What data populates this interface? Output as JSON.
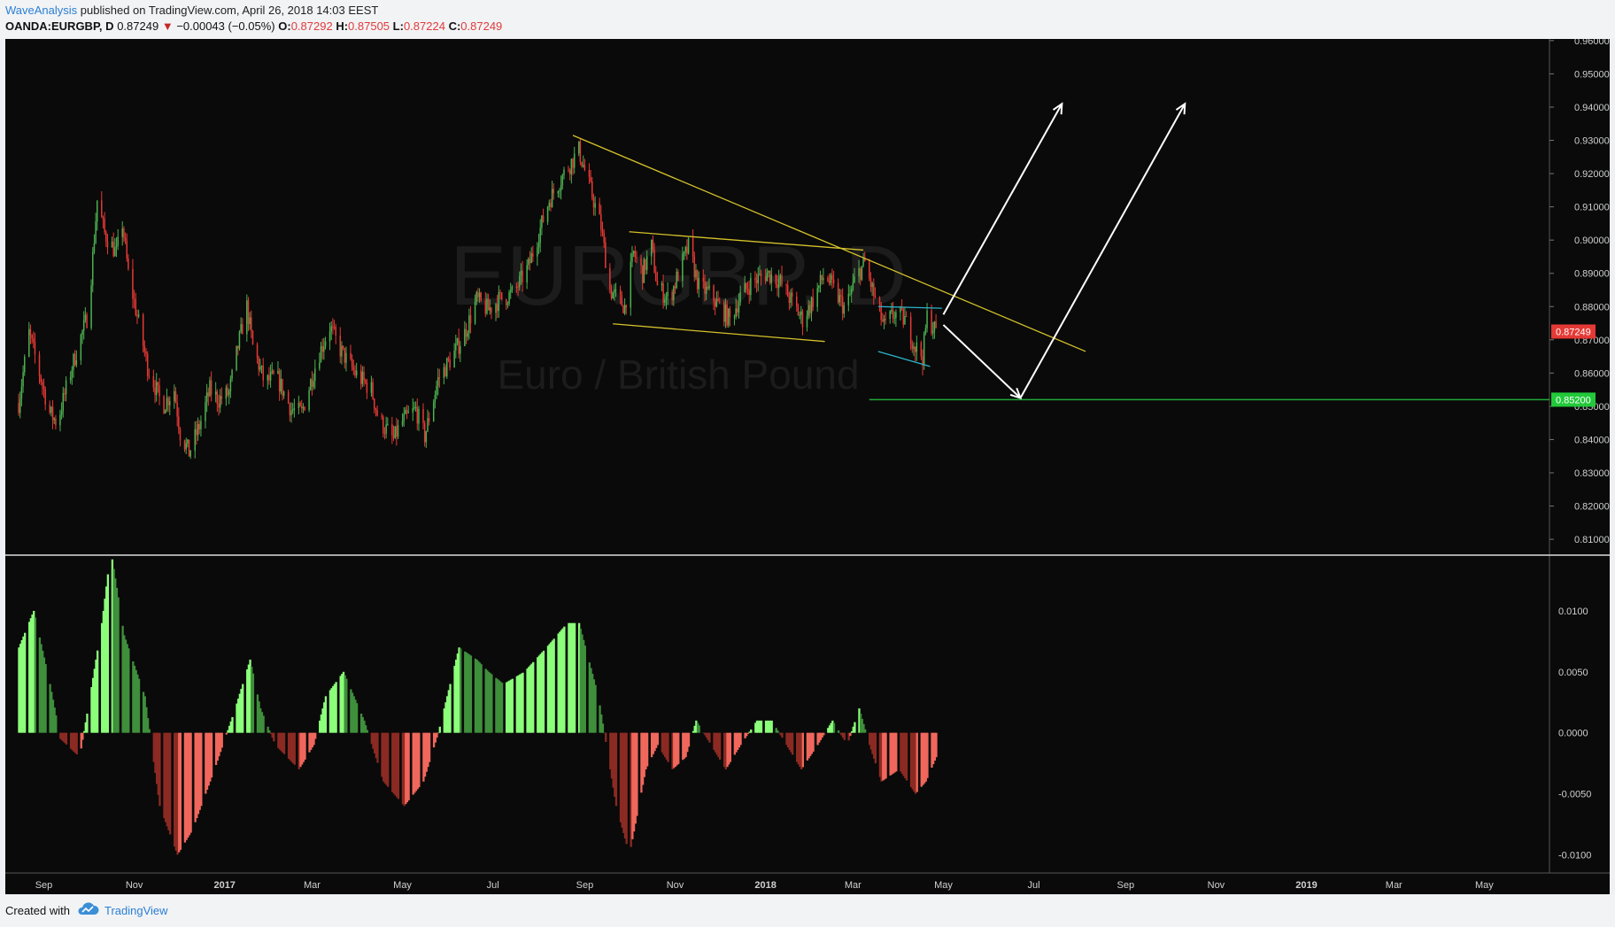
{
  "header": {
    "author": "WaveAnalysis",
    "published_text": "published on TradingView.com, April 26, 2018 14:03 EEST",
    "symbol": "OANDA:EURGBP, D",
    "last": "0.87249",
    "change_arrow": "▼",
    "change": "−0.00043 (−0.05%)",
    "open_label": "O:",
    "open": "0.87292",
    "high_label": "H:",
    "high": "0.87505",
    "low_label": "L:",
    "low": "0.87224",
    "close_label": "C:",
    "close": "0.87249"
  },
  "watermark": {
    "symbol": "EURGBP, D",
    "name": "Euro / British Pound"
  },
  "footer": {
    "created_with": "Created with",
    "brand": "TradingView",
    "logo_icon": "tradingview-cloud-icon"
  },
  "colors": {
    "background": "#0a0a0a",
    "bull": "#4caf50",
    "bear": "#e53935",
    "trendline": "#d4c12b",
    "channel": "#2bb3c9",
    "support": "#22a83a",
    "hist_pos_light": "#8cff7a",
    "hist_pos_dark": "#3f8f3c",
    "hist_neg_light": "#f0675c",
    "hist_neg_dark": "#8b2a22",
    "price_tag": "#e53935",
    "support_tag": "#22c93a"
  },
  "chart_data": {
    "type": "candlestick",
    "price_axis": {
      "ticks": [
        "0.96000",
        "0.95000",
        "0.94000",
        "0.93000",
        "0.92000",
        "0.91000",
        "0.90000",
        "0.89000",
        "0.88000",
        "0.87000",
        "0.86000",
        "0.85000",
        "0.84000",
        "0.83000",
        "0.82000",
        "0.81000"
      ],
      "ylim": [
        0.8055,
        0.9605
      ],
      "current_price_label": "0.87249",
      "support_label": "0.85200"
    },
    "time_axis": {
      "labels": [
        "Sep",
        "Nov",
        "2017",
        "Mar",
        "May",
        "Jul",
        "Sep",
        "Nov",
        "2018",
        "Mar",
        "May",
        "Jul",
        "Sep",
        "Nov",
        "2019",
        "Mar",
        "May"
      ],
      "bold": [
        "2017",
        "2018",
        "2019"
      ]
    },
    "price_path": [
      [
        "2016-08-15",
        0.851
      ],
      [
        "2016-08-22",
        0.872
      ],
      [
        "2016-09-05",
        0.848
      ],
      [
        "2016-09-10",
        0.845
      ],
      [
        "2016-09-20",
        0.862
      ],
      [
        "2016-10-01",
        0.878
      ],
      [
        "2016-10-07",
        0.912
      ],
      [
        "2016-10-12",
        0.902
      ],
      [
        "2016-10-20",
        0.896
      ],
      [
        "2016-10-24",
        0.905
      ],
      [
        "2016-10-28",
        0.89
      ],
      [
        "2016-11-10",
        0.862
      ],
      [
        "2016-11-20",
        0.85
      ],
      [
        "2016-11-28",
        0.855
      ],
      [
        "2016-12-02",
        0.842
      ],
      [
        "2016-12-08",
        0.836
      ],
      [
        "2016-12-15",
        0.844
      ],
      [
        "2016-12-22",
        0.855
      ],
      [
        "2016-12-28",
        0.852
      ],
      [
        "2017-01-04",
        0.854
      ],
      [
        "2017-01-10",
        0.868
      ],
      [
        "2017-01-16",
        0.88
      ],
      [
        "2017-01-20",
        0.868
      ],
      [
        "2017-01-28",
        0.857
      ],
      [
        "2017-02-05",
        0.859
      ],
      [
        "2017-02-15",
        0.849
      ],
      [
        "2017-02-22",
        0.848
      ],
      [
        "2017-03-05",
        0.865
      ],
      [
        "2017-03-13",
        0.874
      ],
      [
        "2017-03-20",
        0.867
      ],
      [
        "2017-03-30",
        0.86
      ],
      [
        "2017-04-10",
        0.855
      ],
      [
        "2017-04-15",
        0.846
      ],
      [
        "2017-04-25",
        0.84
      ],
      [
        "2017-04-30",
        0.845
      ],
      [
        "2017-05-10",
        0.849
      ],
      [
        "2017-05-16",
        0.841
      ],
      [
        "2017-05-25",
        0.858
      ],
      [
        "2017-06-05",
        0.866
      ],
      [
        "2017-06-12",
        0.872
      ],
      [
        "2017-06-20",
        0.882
      ],
      [
        "2017-06-28",
        0.879
      ],
      [
        "2017-07-05",
        0.882
      ],
      [
        "2017-07-15",
        0.884
      ],
      [
        "2017-07-25",
        0.892
      ],
      [
        "2017-08-01",
        0.902
      ],
      [
        "2017-08-08",
        0.912
      ],
      [
        "2017-08-18",
        0.92
      ],
      [
        "2017-08-28",
        0.927
      ],
      [
        "2017-09-05",
        0.915
      ],
      [
        "2017-09-12",
        0.904
      ],
      [
        "2017-09-18",
        0.885
      ],
      [
        "2017-09-28",
        0.88
      ],
      [
        "2017-10-04",
        0.896
      ],
      [
        "2017-10-10",
        0.89
      ],
      [
        "2017-10-16",
        0.898
      ],
      [
        "2017-10-20",
        0.886
      ],
      [
        "2017-10-28",
        0.882
      ],
      [
        "2017-11-04",
        0.891
      ],
      [
        "2017-11-10",
        0.898
      ],
      [
        "2017-11-17",
        0.886
      ],
      [
        "2017-11-24",
        0.884
      ],
      [
        "2017-12-01",
        0.88
      ],
      [
        "2017-12-08",
        0.876
      ],
      [
        "2017-12-15",
        0.883
      ],
      [
        "2017-12-22",
        0.887
      ],
      [
        "2018-01-02",
        0.89
      ],
      [
        "2018-01-10",
        0.888
      ],
      [
        "2018-01-18",
        0.882
      ],
      [
        "2018-01-26",
        0.876
      ],
      [
        "2018-02-02",
        0.882
      ],
      [
        "2018-02-10",
        0.89
      ],
      [
        "2018-02-16",
        0.885
      ],
      [
        "2018-02-24",
        0.879
      ],
      [
        "2018-03-03",
        0.889
      ],
      [
        "2018-03-09",
        0.893
      ],
      [
        "2018-03-16",
        0.882
      ],
      [
        "2018-03-22",
        0.874
      ],
      [
        "2018-03-29",
        0.878
      ],
      [
        "2018-04-05",
        0.876
      ],
      [
        "2018-04-12",
        0.868
      ],
      [
        "2018-04-17",
        0.865
      ],
      [
        "2018-04-20",
        0.877
      ],
      [
        "2018-04-26",
        0.8725
      ]
    ],
    "histogram": {
      "axis_ticks": [
        "0.0100",
        "0.0050",
        "0.0000",
        "-0.0050",
        "-0.0100"
      ],
      "ylim": [
        -0.0115,
        0.0145
      ],
      "profile": [
        [
          "2016-08-15",
          0.007
        ],
        [
          "2016-08-25",
          0.01
        ],
        [
          "2016-09-05",
          0.004
        ],
        [
          "2016-09-12",
          -0.0005
        ],
        [
          "2016-09-25",
          -0.002
        ],
        [
          "2016-10-02",
          0.003
        ],
        [
          "2016-10-10",
          0.009
        ],
        [
          "2016-10-16",
          0.015
        ],
        [
          "2016-10-25",
          0.008
        ],
        [
          "2016-11-08",
          0.003
        ],
        [
          "2016-11-18",
          -0.006
        ],
        [
          "2016-11-30",
          -0.01
        ],
        [
          "2016-12-10",
          -0.008
        ],
        [
          "2016-12-25",
          -0.003
        ],
        [
          "2017-01-08",
          0.002
        ],
        [
          "2017-01-18",
          0.006
        ],
        [
          "2017-01-25",
          0.002
        ],
        [
          "2017-02-04",
          -0.001
        ],
        [
          "2017-02-20",
          -0.003
        ],
        [
          "2017-03-02",
          -0.001
        ],
        [
          "2017-03-10",
          0.003
        ],
        [
          "2017-03-22",
          0.005
        ],
        [
          "2017-04-05",
          0.001
        ],
        [
          "2017-04-18",
          -0.004
        ],
        [
          "2017-05-02",
          -0.006
        ],
        [
          "2017-05-15",
          -0.004
        ],
        [
          "2017-05-25",
          0.0
        ],
        [
          "2017-06-08",
          0.007
        ],
        [
          "2017-06-20",
          0.006
        ],
        [
          "2017-06-28",
          0.005
        ],
        [
          "2017-07-08",
          0.004
        ],
        [
          "2017-07-22",
          0.005
        ],
        [
          "2017-08-06",
          0.007
        ],
        [
          "2017-08-20",
          0.009
        ],
        [
          "2017-08-28",
          0.009
        ],
        [
          "2017-09-10",
          0.003
        ],
        [
          "2017-09-22",
          -0.006
        ],
        [
          "2017-10-01",
          -0.01
        ],
        [
          "2017-10-12",
          -0.003
        ],
        [
          "2017-10-20",
          -0.001
        ],
        [
          "2017-10-30",
          -0.003
        ],
        [
          "2017-11-08",
          -0.002
        ],
        [
          "2017-11-15",
          0.001
        ],
        [
          "2017-11-25",
          -0.001
        ],
        [
          "2017-12-05",
          -0.003
        ],
        [
          "2017-12-15",
          -0.001
        ],
        [
          "2017-12-26",
          0.001
        ],
        [
          "2018-01-05",
          0.001
        ],
        [
          "2018-01-15",
          -0.001
        ],
        [
          "2018-01-25",
          -0.003
        ],
        [
          "2018-02-05",
          -0.001
        ],
        [
          "2018-02-15",
          0.001
        ],
        [
          "2018-02-25",
          -0.001
        ],
        [
          "2018-03-05",
          0.002
        ],
        [
          "2018-03-12",
          -0.001
        ],
        [
          "2018-03-20",
          -0.004
        ],
        [
          "2018-04-01",
          -0.003
        ],
        [
          "2018-04-12",
          -0.005
        ],
        [
          "2018-04-19",
          -0.004
        ],
        [
          "2018-04-26",
          -0.002
        ]
      ]
    },
    "annotations": {
      "main_trendline": [
        [
          "2017-08-24",
          0.9315
        ],
        [
          "2018-08-05",
          0.8665
        ]
      ],
      "channel_upper": [
        [
          "2017-10-01",
          0.9025
        ],
        [
          "2018-03-08",
          0.897
        ]
      ],
      "channel_lower": [
        [
          "2017-09-20",
          0.8748
        ],
        [
          "2018-02-10",
          0.8695
        ]
      ],
      "wedge_upper": [
        [
          "2018-03-18",
          0.88
        ],
        [
          "2018-04-30",
          0.8795
        ]
      ],
      "wedge_lower": [
        [
          "2018-03-18",
          0.8665
        ],
        [
          "2018-04-22",
          0.862
        ]
      ],
      "support_line": {
        "from": "2018-03-12",
        "price": 0.852
      },
      "arrows": [
        [
          [
            "2018-05-01",
            0.8776
          ],
          [
            "2018-07-20",
            0.941
          ]
        ],
        [
          [
            "2018-05-01",
            0.8745
          ],
          [
            "2018-06-22",
            0.8525
          ]
        ],
        [
          [
            "2018-06-22",
            0.8525
          ],
          [
            "2018-10-11",
            0.941
          ]
        ]
      ]
    }
  }
}
